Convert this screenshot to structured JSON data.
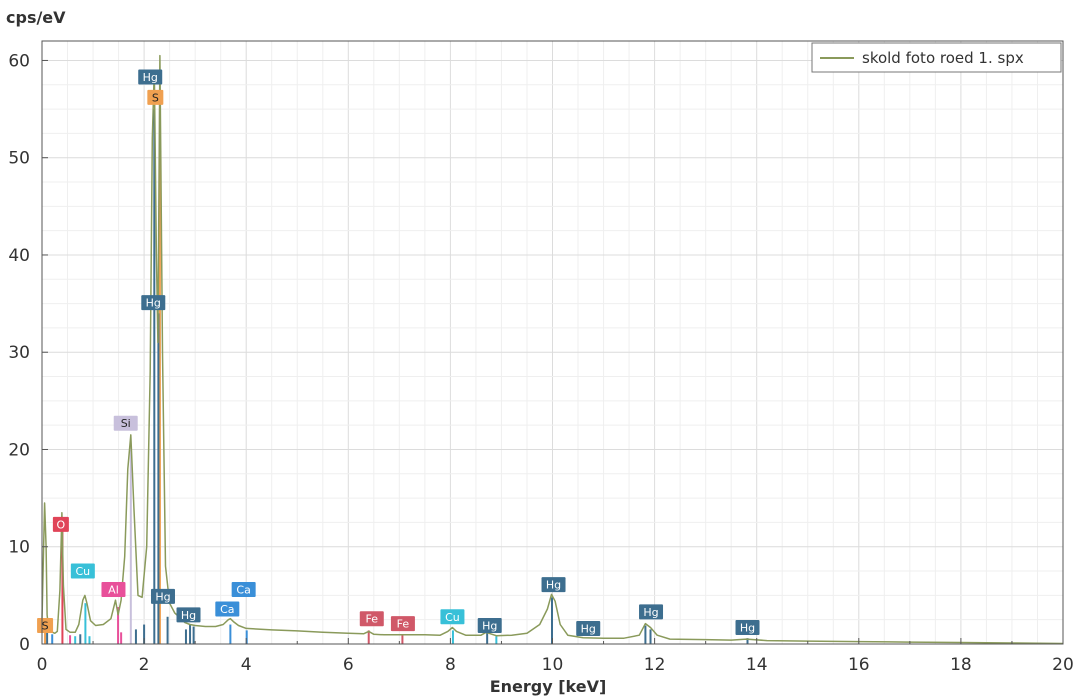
{
  "chart_data": {
    "type": "line",
    "xlabel": "Energy [keV]",
    "ylabel": "cps/eV",
    "xlim": [
      0,
      20
    ],
    "ylim": [
      0,
      62
    ],
    "x_ticks": [
      0,
      2,
      4,
      6,
      8,
      10,
      12,
      14,
      16,
      18,
      20
    ],
    "y_ticks": [
      0,
      10,
      20,
      30,
      40,
      50,
      60
    ],
    "grid": true,
    "legend_position": "top-right",
    "series": [
      {
        "name": "skold foto roed 1. spx",
        "color": "#8a9a5b",
        "x": [
          0.0,
          0.05,
          0.08,
          0.1,
          0.13,
          0.17,
          0.25,
          0.3,
          0.35,
          0.39,
          0.42,
          0.47,
          0.55,
          0.65,
          0.72,
          0.8,
          0.84,
          0.88,
          0.95,
          1.05,
          1.2,
          1.35,
          1.44,
          1.49,
          1.55,
          1.62,
          1.68,
          1.74,
          1.8,
          1.88,
          1.96,
          2.05,
          2.12,
          2.16,
          2.2,
          2.24,
          2.27,
          2.31,
          2.36,
          2.42,
          2.5,
          2.6,
          2.7,
          2.8,
          2.9,
          3.0,
          3.2,
          3.4,
          3.55,
          3.65,
          3.69,
          3.75,
          3.85,
          4.0,
          4.5,
          5.0,
          5.5,
          6.0,
          6.3,
          6.4,
          6.5,
          6.7,
          7.0,
          7.5,
          7.8,
          7.95,
          8.04,
          8.12,
          8.3,
          8.6,
          8.7,
          8.9,
          9.2,
          9.5,
          9.75,
          9.9,
          9.98,
          10.05,
          10.15,
          10.3,
          10.6,
          11.0,
          11.4,
          11.7,
          11.82,
          11.92,
          12.05,
          12.3,
          13.0,
          13.5,
          13.8,
          14.2,
          15.0,
          16.0,
          17.0,
          18.0,
          19.0,
          20.0
        ],
        "values": [
          2.5,
          14.5,
          10.0,
          3.0,
          1.6,
          1.3,
          1.1,
          1.3,
          5.5,
          13.5,
          6.0,
          1.5,
          1.2,
          1.2,
          2.0,
          4.5,
          5.0,
          4.2,
          2.4,
          1.9,
          2.0,
          2.6,
          4.5,
          3.0,
          4.5,
          9.0,
          18.0,
          21.5,
          14.0,
          5.0,
          4.8,
          10.0,
          28.0,
          52.0,
          59.0,
          40.0,
          31.0,
          60.5,
          30.0,
          8.0,
          4.2,
          3.2,
          2.7,
          2.2,
          2.0,
          1.9,
          1.8,
          1.8,
          2.0,
          2.5,
          2.6,
          2.3,
          1.9,
          1.6,
          1.45,
          1.35,
          1.2,
          1.1,
          1.05,
          1.3,
          1.0,
          0.95,
          0.95,
          0.95,
          0.9,
          1.3,
          1.7,
          1.3,
          0.9,
          0.9,
          1.2,
          0.85,
          0.9,
          1.1,
          2.0,
          3.6,
          5.1,
          4.4,
          2.0,
          0.9,
          0.65,
          0.6,
          0.6,
          0.9,
          2.1,
          1.7,
          0.9,
          0.5,
          0.45,
          0.4,
          0.5,
          0.35,
          0.3,
          0.25,
          0.2,
          0.15,
          0.1,
          0.05
        ]
      }
    ],
    "peak_labels": [
      {
        "text": "Hg",
        "x": 2.12,
        "y": 58.3,
        "color": "#3d6e8f"
      },
      {
        "text": "S",
        "x": 2.22,
        "y": 56.2,
        "color": "#f0a050"
      },
      {
        "text": "Hg",
        "x": 2.18,
        "y": 35.1,
        "color": "#3d6e8f"
      },
      {
        "text": "Si",
        "x": 1.64,
        "y": 22.7,
        "color": "#c8c0dc"
      },
      {
        "text": "O",
        "x": 0.37,
        "y": 12.3,
        "color": "#e04458"
      },
      {
        "text": "Cu",
        "x": 0.8,
        "y": 7.5,
        "color": "#38c0d8"
      },
      {
        "text": "Al",
        "x": 1.4,
        "y": 5.6,
        "color": "#e8509a"
      },
      {
        "text": "Hg",
        "x": 2.37,
        "y": 4.9,
        "color": "#3d6e8f"
      },
      {
        "text": "Hg",
        "x": 2.87,
        "y": 3.0,
        "color": "#3d6e8f"
      },
      {
        "text": "Ca",
        "x": 3.63,
        "y": 3.6,
        "color": "#3a8fd8"
      },
      {
        "text": "Ca",
        "x": 3.95,
        "y": 5.6,
        "color": "#3a8fd8"
      },
      {
        "text": "Fe",
        "x": 6.46,
        "y": 2.6,
        "color": "#d05868"
      },
      {
        "text": "Fe",
        "x": 7.07,
        "y": 2.1,
        "color": "#d05868"
      },
      {
        "text": "Cu",
        "x": 8.04,
        "y": 2.8,
        "color": "#38c0d8"
      },
      {
        "text": "Hg",
        "x": 8.77,
        "y": 1.9,
        "color": "#3d6e8f"
      },
      {
        "text": "Hg",
        "x": 10.02,
        "y": 6.1,
        "color": "#3d6e8f"
      },
      {
        "text": "Hg",
        "x": 10.7,
        "y": 1.6,
        "color": "#3d6e8f"
      },
      {
        "text": "Hg",
        "x": 11.93,
        "y": 3.3,
        "color": "#3d6e8f"
      },
      {
        "text": "Hg",
        "x": 13.82,
        "y": 1.7,
        "color": "#3d6e8f"
      },
      {
        "text": "S",
        "x": 0.06,
        "y": 1.9,
        "color": "#f0a050"
      }
    ],
    "marker_lines": [
      {
        "x": 0.06,
        "height": 1.5,
        "color": "#f0a050"
      },
      {
        "x": 0.1,
        "height": 1.2,
        "color": "#3d6e8f"
      },
      {
        "x": 0.2,
        "height": 1.0,
        "color": "#3a8fd8"
      },
      {
        "x": 0.4,
        "height": 13.0,
        "color": "#e04458"
      },
      {
        "x": 0.55,
        "height": 0.9,
        "color": "#e8509a"
      },
      {
        "x": 0.65,
        "height": 0.8,
        "color": "#38c0d8"
      },
      {
        "x": 0.75,
        "height": 1.0,
        "color": "#3d6e8f"
      },
      {
        "x": 0.85,
        "height": 4.2,
        "color": "#38c0d8"
      },
      {
        "x": 0.93,
        "height": 0.8,
        "color": "#38c0d8"
      },
      {
        "x": 1.49,
        "height": 3.8,
        "color": "#e8509a"
      },
      {
        "x": 1.55,
        "height": 1.2,
        "color": "#e8509a"
      },
      {
        "x": 1.74,
        "height": 20.5,
        "color": "#c8c0dc"
      },
      {
        "x": 1.84,
        "height": 1.5,
        "color": "#3d6e8f"
      },
      {
        "x": 2.0,
        "height": 2.0,
        "color": "#3d6e8f"
      },
      {
        "x": 2.2,
        "height": 55.0,
        "color": "#3d6e8f"
      },
      {
        "x": 2.31,
        "height": 55.0,
        "color": "#f0a050"
      },
      {
        "x": 2.28,
        "height": 34.0,
        "color": "#3d6e8f"
      },
      {
        "x": 2.46,
        "height": 2.8,
        "color": "#3d6e8f"
      },
      {
        "x": 2.82,
        "height": 1.5,
        "color": "#3d6e8f"
      },
      {
        "x": 2.9,
        "height": 2.0,
        "color": "#3d6e8f"
      },
      {
        "x": 2.97,
        "height": 1.8,
        "color": "#3d6e8f"
      },
      {
        "x": 3.69,
        "height": 2.0,
        "color": "#3a8fd8"
      },
      {
        "x": 4.01,
        "height": 1.4,
        "color": "#3a8fd8"
      },
      {
        "x": 6.4,
        "height": 1.4,
        "color": "#d05868"
      },
      {
        "x": 7.06,
        "height": 1.0,
        "color": "#d05868"
      },
      {
        "x": 8.05,
        "height": 1.4,
        "color": "#38c0d8"
      },
      {
        "x": 8.9,
        "height": 0.8,
        "color": "#38c0d8"
      },
      {
        "x": 8.72,
        "height": 1.2,
        "color": "#3d6e8f"
      },
      {
        "x": 9.99,
        "height": 4.8,
        "color": "#3d6e8f"
      },
      {
        "x": 11.82,
        "height": 1.9,
        "color": "#3d6e8f"
      },
      {
        "x": 11.92,
        "height": 1.5,
        "color": "#3d6e8f"
      },
      {
        "x": 13.82,
        "height": 0.6,
        "color": "#3d6e8f"
      }
    ]
  }
}
